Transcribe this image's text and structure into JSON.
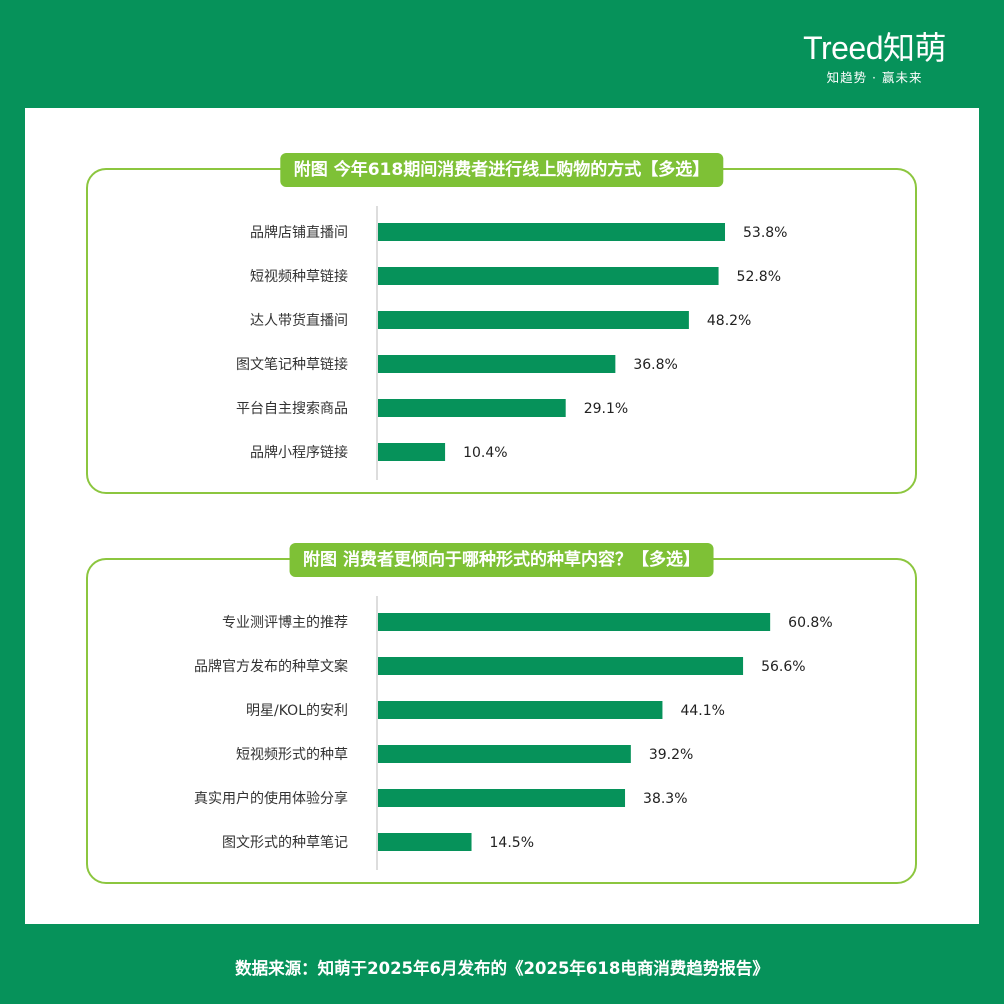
{
  "logo": {
    "brand": "Treed知萌",
    "slogan": "知趋势 · 赢未来"
  },
  "colors": {
    "background": "#06925a",
    "bar": "#06925a",
    "title_bg": "#7ec136",
    "card_border": "#8cc63f"
  },
  "chart_data": [
    {
      "type": "bar",
      "orientation": "horizontal",
      "title": "附图 今年618期间消费者进行线上购物的方式【多选】",
      "categories": [
        "品牌店铺直播间",
        "短视频种草链接",
        "达人带货直播间",
        "图文笔记种草链接",
        "平台自主搜索商品",
        "品牌小程序链接"
      ],
      "values": [
        53.8,
        52.8,
        48.2,
        36.8,
        29.1,
        10.4
      ],
      "value_labels": [
        "53.8%",
        "52.8%",
        "48.2%",
        "36.8%",
        "29.1%",
        "10.4%"
      ],
      "unit": "%",
      "xlim": [
        0,
        60
      ]
    },
    {
      "type": "bar",
      "orientation": "horizontal",
      "title": "附图 消费者更倾向于哪种形式的种草内容？【多选】",
      "categories": [
        "专业测评博主的推荐",
        "品牌官方发布的种草文案",
        "明星/KOL的安利",
        "短视频形式的种草",
        "真实用户的使用体验分享",
        "图文形式的种草笔记"
      ],
      "values": [
        60.8,
        56.6,
        44.1,
        39.2,
        38.3,
        14.5
      ],
      "value_labels": [
        "60.8%",
        "56.6%",
        "44.1%",
        "39.2%",
        "38.3%",
        "14.5%"
      ],
      "unit": "%",
      "xlim": [
        0,
        60
      ]
    }
  ],
  "footer": {
    "source": "数据来源：知萌于2025年6月发布的《2025年618电商消费趋势报告》"
  }
}
